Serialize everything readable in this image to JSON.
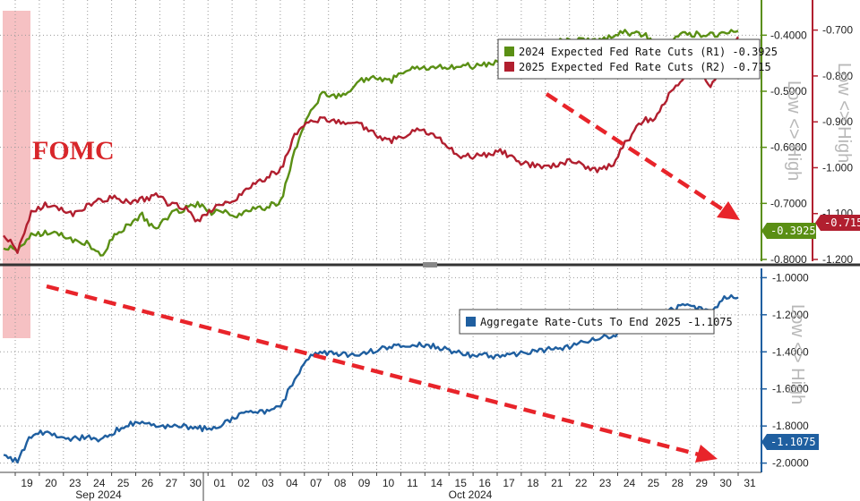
{
  "chart_data": [
    {
      "type": "line",
      "panel": "top",
      "annotation": "FOMC",
      "legend": [
        {
          "label": "2024 Expected Fed Rate Cuts (R1)",
          "value": "-0.3925",
          "color": "#5a8f14"
        },
        {
          "label": "2025 Expected Fed Rate Cuts (R2)",
          "value": "-0.715",
          "color": "#b11f2f"
        }
      ],
      "legend_position": "top-right",
      "right_axis_1": {
        "title": "Low <> High",
        "ylim": [
          -0.8,
          -0.35
        ],
        "ticks": [
          "-0.8000",
          "-0.7000",
          "-0.6000",
          "-0.5000",
          "-0.4000"
        ],
        "color": "#5a8f14"
      },
      "right_axis_2": {
        "title": "Low <> High",
        "ylim": [
          -1.2,
          -0.65
        ],
        "ticks": [
          "-1.200",
          "-1.100",
          "-1.000",
          "-0.900",
          "-0.800",
          "-0.700"
        ],
        "color": "#b11f2f"
      },
      "series": [
        {
          "name": "2024 Expected Fed Rate Cuts (R1)",
          "axis": "R1",
          "color": "#5a8f14",
          "last_value": "-0.3925",
          "values": [
            -0.778,
            -0.782,
            -0.758,
            -0.752,
            -0.755,
            -0.765,
            -0.772,
            -0.794,
            -0.758,
            -0.738,
            -0.722,
            -0.748,
            -0.719,
            -0.71,
            -0.703,
            -0.715,
            -0.717,
            -0.72,
            -0.712,
            -0.706,
            -0.698,
            -0.608,
            -0.542,
            -0.505,
            -0.51,
            -0.498,
            -0.478,
            -0.475,
            -0.48,
            -0.462,
            -0.458,
            -0.455,
            -0.46,
            -0.453,
            -0.456,
            -0.45,
            -0.448,
            -0.452,
            -0.446,
            -0.422,
            -0.41,
            -0.412,
            -0.408,
            -0.41,
            -0.399,
            -0.395,
            -0.398,
            -0.41,
            -0.415,
            -0.4,
            -0.397,
            -0.4,
            -0.395,
            -0.392
          ]
        },
        {
          "name": "2025 Expected Fed Rate Cuts (R2)",
          "axis": "R2",
          "color": "#b11f2f",
          "last_value": "-0.715",
          "values": [
            -1.145,
            -1.18,
            -1.1,
            -1.08,
            -1.09,
            -1.1,
            -1.085,
            -1.07,
            -1.065,
            -1.075,
            -1.07,
            -1.06,
            -1.08,
            -1.085,
            -1.12,
            -1.09,
            -1.08,
            -1.06,
            -1.04,
            -1.02,
            -1.005,
            -0.93,
            -0.9,
            -0.895,
            -0.9,
            -0.9,
            -0.91,
            -0.93,
            -0.94,
            -0.93,
            -0.915,
            -0.925,
            -0.955,
            -0.975,
            -0.975,
            -0.97,
            -0.965,
            -0.985,
            -0.995,
            -0.995,
            -0.995,
            -0.985,
            -1.0,
            -1.005,
            -0.99,
            -0.94,
            -0.9,
            -0.89,
            -0.84,
            -0.815,
            -0.76,
            -0.83,
            -0.75,
            -0.715
          ]
        }
      ]
    },
    {
      "type": "line",
      "panel": "bottom",
      "legend": [
        {
          "label": "Aggregate Rate-Cuts To End 2025",
          "value": "-1.1075",
          "color": "#1f5fa0"
        }
      ],
      "legend_position": "top-right",
      "right_axis": {
        "title": "Low <> High",
        "ylim": [
          -2.05,
          -0.95
        ],
        "ticks": [
          "-2.0000",
          "-1.8000",
          "-1.6000",
          "-1.4000",
          "-1.2000",
          "-1.0000"
        ],
        "color": "#1f5fa0"
      },
      "x_tick_labels": [
        "19",
        "20",
        "23",
        "24",
        "25",
        "26",
        "27",
        "30",
        "01",
        "02",
        "03",
        "04",
        "07",
        "08",
        "09",
        "10",
        "11",
        "14",
        "15",
        "16",
        "17",
        "18",
        "21",
        "22",
        "23",
        "24",
        "25",
        "28",
        "29",
        "30",
        "31"
      ],
      "x_group_labels": [
        "Sep 2024",
        "Oct 2024"
      ],
      "series": [
        {
          "name": "Aggregate Rate-Cuts To End 2025",
          "color": "#1f5fa0",
          "last_value": "-1.1075",
          "values": [
            -1.96,
            -1.99,
            -1.85,
            -1.83,
            -1.85,
            -1.87,
            -1.86,
            -1.87,
            -1.83,
            -1.79,
            -1.78,
            -1.8,
            -1.8,
            -1.8,
            -1.81,
            -1.82,
            -1.78,
            -1.74,
            -1.73,
            -1.72,
            -1.69,
            -1.55,
            -1.43,
            -1.4,
            -1.41,
            -1.42,
            -1.4,
            -1.39,
            -1.37,
            -1.37,
            -1.36,
            -1.37,
            -1.39,
            -1.41,
            -1.42,
            -1.42,
            -1.43,
            -1.41,
            -1.4,
            -1.39,
            -1.38,
            -1.37,
            -1.34,
            -1.33,
            -1.31,
            -1.27,
            -1.22,
            -1.2,
            -1.18,
            -1.15,
            -1.17,
            -1.18,
            -1.11,
            -1.1075
          ]
        }
      ]
    }
  ]
}
